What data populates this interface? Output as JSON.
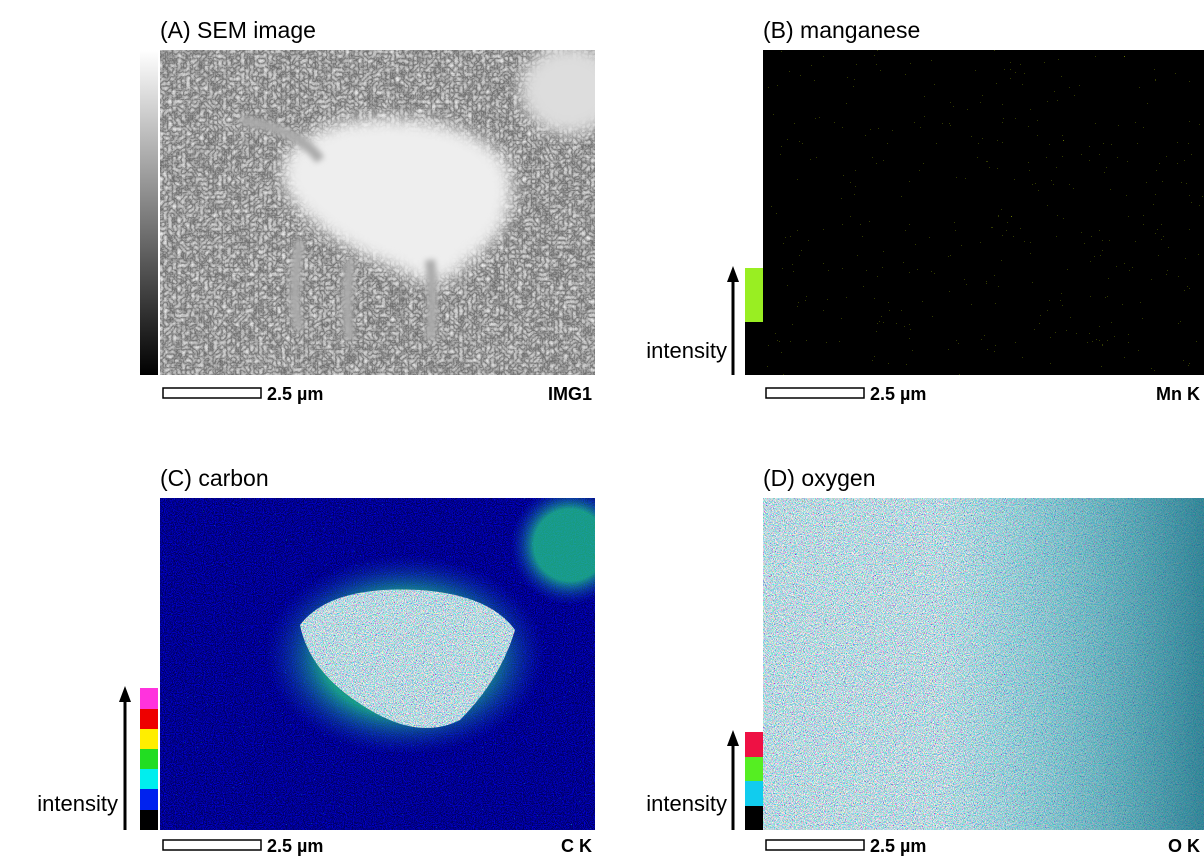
{
  "panels": [
    {
      "title": "(A) SEM image",
      "scale_label": "2.5 µm",
      "element_label": "IMG1"
    },
    {
      "title": "(B) manganese",
      "scale_label": "2.5 µm",
      "element_label": "Mn K",
      "intensity_label": "intensity"
    },
    {
      "title": "(C) carbon",
      "scale_label": "2.5 µm",
      "element_label": "C K",
      "intensity_label": "intensity"
    },
    {
      "title": "(D) oxygen",
      "scale_label": "2.5 µm",
      "element_label": "O K",
      "intensity_label": "intensity"
    }
  ]
}
